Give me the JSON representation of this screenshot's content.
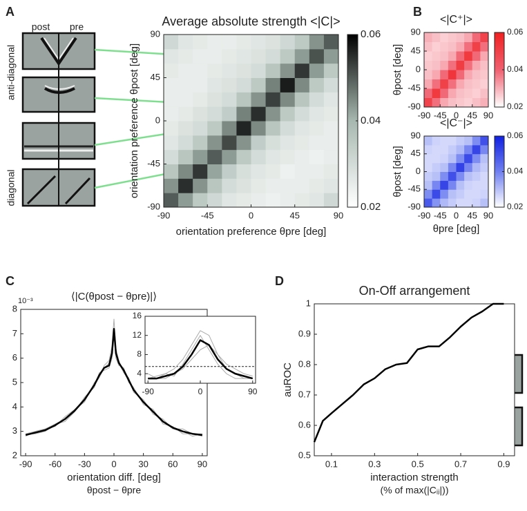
{
  "chart_data": [
    {
      "type": "heatmap",
      "panel": "A",
      "title": "Average absolute strength <|C|>",
      "xlabel": "orientation preference θpre [deg]",
      "ylabel": "orientation preference θpost [deg]",
      "column_labels": [
        "post",
        "pre"
      ],
      "group_labels": [
        "anti-diagonal",
        "diagonal"
      ],
      "x": [
        -82.5,
        -67.5,
        -52.5,
        -37.5,
        -22.5,
        -7.5,
        7.5,
        22.5,
        37.5,
        52.5,
        67.5,
        82.5
      ],
      "y": [
        -82.5,
        -67.5,
        -52.5,
        -37.5,
        -22.5,
        -7.5,
        7.5,
        22.5,
        37.5,
        52.5,
        67.5,
        82.5
      ],
      "z": [
        [
          0.05,
          0.043,
          0.035,
          0.031,
          0.027,
          0.026,
          0.025,
          0.024,
          0.025,
          0.026,
          0.027,
          0.031
        ],
        [
          0.044,
          0.055,
          0.044,
          0.036,
          0.03,
          0.028,
          0.026,
          0.025,
          0.025,
          0.025,
          0.026,
          0.027
        ],
        [
          0.036,
          0.045,
          0.054,
          0.042,
          0.034,
          0.029,
          0.027,
          0.026,
          0.024,
          0.025,
          0.025,
          0.026
        ],
        [
          0.03,
          0.036,
          0.043,
          0.05,
          0.043,
          0.035,
          0.03,
          0.027,
          0.026,
          0.025,
          0.024,
          0.025
        ],
        [
          0.027,
          0.03,
          0.035,
          0.044,
          0.052,
          0.044,
          0.034,
          0.029,
          0.027,
          0.026,
          0.025,
          0.025
        ],
        [
          0.026,
          0.028,
          0.03,
          0.035,
          0.045,
          0.056,
          0.045,
          0.036,
          0.03,
          0.027,
          0.026,
          0.025
        ],
        [
          0.025,
          0.026,
          0.028,
          0.03,
          0.034,
          0.046,
          0.055,
          0.044,
          0.035,
          0.03,
          0.027,
          0.026
        ],
        [
          0.025,
          0.025,
          0.026,
          0.028,
          0.03,
          0.036,
          0.044,
          0.053,
          0.045,
          0.036,
          0.03,
          0.027
        ],
        [
          0.025,
          0.025,
          0.025,
          0.027,
          0.028,
          0.03,
          0.035,
          0.046,
          0.057,
          0.045,
          0.035,
          0.03
        ],
        [
          0.026,
          0.025,
          0.025,
          0.026,
          0.027,
          0.028,
          0.03,
          0.036,
          0.044,
          0.054,
          0.043,
          0.035
        ],
        [
          0.027,
          0.026,
          0.025,
          0.025,
          0.026,
          0.027,
          0.028,
          0.03,
          0.035,
          0.043,
          0.051,
          0.043
        ],
        [
          0.031,
          0.027,
          0.026,
          0.025,
          0.025,
          0.026,
          0.027,
          0.028,
          0.031,
          0.035,
          0.044,
          0.05
        ]
      ],
      "xlim": [
        -90,
        90
      ],
      "ylim": [
        -90,
        90
      ],
      "xticks": [
        -90,
        -45,
        0,
        45,
        90
      ],
      "yticks": [
        -90,
        -45,
        0,
        45,
        90
      ],
      "colormap": [
        "#ffffff",
        "#a7b8b0",
        "#000000"
      ],
      "clim": [
        0.02,
        0.06
      ],
      "cticks": [
        0.02,
        0.04,
        0.06
      ]
    },
    {
      "type": "heatmap",
      "panel": "B",
      "title": "<|C⁺|>",
      "ylabel": "θpost [deg]",
      "x": [
        -78.75,
        -56.25,
        -33.75,
        -11.25,
        11.25,
        33.75,
        56.25,
        78.75
      ],
      "y": [
        -78.75,
        -56.25,
        -33.75,
        -11.25,
        11.25,
        33.75,
        56.25,
        78.75
      ],
      "z": [
        [
          0.049,
          0.038,
          0.031,
          0.028,
          0.027,
          0.026,
          0.028,
          0.03
        ],
        [
          0.039,
          0.052,
          0.039,
          0.031,
          0.028,
          0.027,
          0.026,
          0.028
        ],
        [
          0.031,
          0.038,
          0.05,
          0.038,
          0.031,
          0.028,
          0.027,
          0.026
        ],
        [
          0.028,
          0.031,
          0.039,
          0.053,
          0.039,
          0.031,
          0.028,
          0.027
        ],
        [
          0.027,
          0.028,
          0.031,
          0.038,
          0.051,
          0.038,
          0.031,
          0.028
        ],
        [
          0.026,
          0.027,
          0.028,
          0.031,
          0.039,
          0.052,
          0.039,
          0.031
        ],
        [
          0.028,
          0.026,
          0.027,
          0.028,
          0.031,
          0.038,
          0.05,
          0.038
        ],
        [
          0.03,
          0.028,
          0.026,
          0.027,
          0.028,
          0.031,
          0.039,
          0.049
        ]
      ],
      "xlim": [
        -90,
        90
      ],
      "ylim": [
        -90,
        90
      ],
      "xticks": [
        -90,
        -45,
        0,
        45,
        90
      ],
      "yticks": [
        -90,
        -45,
        0,
        45,
        90
      ],
      "colormap": [
        "#ffffff",
        "#f06070",
        "#f02020"
      ],
      "clim": [
        0.02,
        0.06
      ],
      "cticks": [
        0.02,
        0.04,
        0.06
      ]
    },
    {
      "type": "heatmap",
      "title": "<|C⁻|>",
      "ylabel": "θpost [deg]",
      "xlabel": "θpre [deg]",
      "x": [
        -78.75,
        -56.25,
        -33.75,
        -11.25,
        11.25,
        33.75,
        56.25,
        78.75
      ],
      "y": [
        -78.75,
        -56.25,
        -33.75,
        -11.25,
        11.25,
        33.75,
        56.25,
        78.75
      ],
      "z": [
        [
          0.048,
          0.037,
          0.031,
          0.028,
          0.026,
          0.026,
          0.027,
          0.03
        ],
        [
          0.038,
          0.051,
          0.038,
          0.03,
          0.028,
          0.026,
          0.026,
          0.027
        ],
        [
          0.03,
          0.039,
          0.052,
          0.039,
          0.03,
          0.027,
          0.026,
          0.026
        ],
        [
          0.028,
          0.03,
          0.038,
          0.05,
          0.038,
          0.03,
          0.028,
          0.026
        ],
        [
          0.026,
          0.028,
          0.03,
          0.039,
          0.053,
          0.039,
          0.031,
          0.028
        ],
        [
          0.026,
          0.026,
          0.027,
          0.03,
          0.038,
          0.051,
          0.038,
          0.03
        ],
        [
          0.027,
          0.026,
          0.026,
          0.028,
          0.031,
          0.039,
          0.052,
          0.039
        ],
        [
          0.03,
          0.027,
          0.026,
          0.026,
          0.028,
          0.03,
          0.038,
          0.05
        ]
      ],
      "xlim": [
        -90,
        90
      ],
      "ylim": [
        -90,
        90
      ],
      "xticks": [
        -90,
        -45,
        0,
        45,
        90
      ],
      "yticks": [
        -90,
        -45,
        0,
        45,
        90
      ],
      "colormap": [
        "#ffffff",
        "#7080f0",
        "#1020e0"
      ],
      "clim": [
        0.02,
        0.06
      ],
      "cticks": [
        0.02,
        0.04,
        0.06
      ]
    },
    {
      "type": "line",
      "panel": "C",
      "title": "⟨|C(θpost − θpre)|⟩",
      "y_multiplier": "10⁻³",
      "xlabel": [
        "orientation diff. [deg]",
        "θpost − θpre"
      ],
      "x": [
        -90,
        -80,
        -70,
        -60,
        -50,
        -40,
        -30,
        -20,
        -15,
        -10,
        -5,
        -2,
        0,
        2,
        5,
        10,
        15,
        20,
        30,
        40,
        50,
        60,
        70,
        80,
        90
      ],
      "series": [
        {
          "color": "#aaaaaa",
          "linewidth": 1,
          "values": [
            2.8,
            3.0,
            3.1,
            3.2,
            3.6,
            3.9,
            4.2,
            5.0,
            5.2,
            5.7,
            5.9,
            6.5,
            7.6,
            6.4,
            5.9,
            5.4,
            5.2,
            4.6,
            4.3,
            3.7,
            3.5,
            3.1,
            3.0,
            2.8,
            2.9
          ]
        },
        {
          "color": "#aaaaaa",
          "linewidth": 1,
          "values": [
            2.9,
            2.9,
            3.0,
            3.3,
            3.4,
            3.8,
            4.4,
            4.8,
            5.4,
            5.5,
            5.6,
            6.0,
            7.0,
            6.0,
            5.7,
            5.6,
            5.0,
            4.8,
            4.1,
            3.9,
            3.3,
            3.2,
            2.9,
            2.9,
            2.8
          ]
        },
        {
          "color": "#aaaaaa",
          "linewidth": 1,
          "values": [
            2.9,
            3.0,
            3.1,
            3.3,
            3.5,
            3.9,
            4.3,
            4.9,
            5.2,
            5.6,
            5.8,
            6.3,
            6.9,
            6.3,
            5.8,
            5.4,
            5.1,
            4.7,
            4.2,
            3.8,
            3.4,
            3.1,
            3.1,
            2.9,
            2.9
          ]
        },
        {
          "color": "#000000",
          "linewidth": 2.5,
          "values": [
            2.85,
            2.95,
            3.05,
            3.25,
            3.5,
            3.85,
            4.3,
            4.9,
            5.3,
            5.6,
            5.7,
            6.2,
            7.2,
            6.2,
            5.8,
            5.5,
            5.1,
            4.7,
            4.2,
            3.8,
            3.4,
            3.15,
            3.0,
            2.9,
            2.85
          ]
        }
      ],
      "xlim": [
        -95,
        95
      ],
      "ylim": [
        2,
        8
      ],
      "xticks": [
        -90,
        -60,
        -30,
        0,
        30,
        60,
        90
      ],
      "yticks": [
        2,
        3,
        4,
        5,
        6,
        7,
        8
      ]
    },
    {
      "type": "line",
      "x": [
        -90,
        -75,
        -60,
        -45,
        -30,
        -15,
        0,
        15,
        30,
        45,
        60,
        75,
        90
      ],
      "series": [
        {
          "color": "#aaaaaa",
          "linewidth": 1,
          "values": [
            3,
            3.5,
            4,
            5,
            7,
            10,
            13,
            12,
            8,
            5,
            4,
            3,
            3
          ]
        },
        {
          "color": "#aaaaaa",
          "linewidth": 1,
          "values": [
            4,
            3,
            3,
            4,
            5,
            7,
            9,
            10,
            8,
            6,
            5,
            4,
            3.5
          ]
        },
        {
          "color": "#aaaaaa",
          "linewidth": 1,
          "values": [
            3,
            3,
            4,
            3.5,
            6,
            9,
            12,
            9,
            6,
            4,
            3,
            3,
            3
          ]
        },
        {
          "color": "#000000",
          "linewidth": 2.5,
          "values": [
            3,
            3,
            3.5,
            4,
            5.5,
            8,
            11,
            10,
            7,
            5,
            4,
            3.5,
            3
          ]
        }
      ],
      "hlines": [
        5.5
      ],
      "xlim": [
        -95,
        95
      ],
      "ylim": [
        2,
        16
      ],
      "xticks": [
        -90,
        0,
        90
      ],
      "yticks": [
        4,
        8,
        12,
        16
      ]
    },
    {
      "type": "line",
      "panel": "D",
      "title": "On-Off arrangement",
      "ylabel": "auROC",
      "xlabel": [
        "interaction strength",
        "(% of max(|Cᵢⱼ|))"
      ],
      "x": [
        0.02,
        0.06,
        0.1,
        0.15,
        0.2,
        0.25,
        0.3,
        0.35,
        0.4,
        0.45,
        0.5,
        0.55,
        0.6,
        0.65,
        0.7,
        0.75,
        0.8,
        0.85,
        0.9
      ],
      "series": [
        {
          "color": "#000000",
          "linewidth": 2.5,
          "values": [
            0.545,
            0.615,
            0.64,
            0.67,
            0.7,
            0.735,
            0.755,
            0.785,
            0.8,
            0.805,
            0.85,
            0.86,
            0.86,
            0.89,
            0.925,
            0.955,
            0.975,
            1.0,
            1.0
          ]
        }
      ],
      "xlim": [
        0.02,
        0.95
      ],
      "ylim": [
        0.5,
        1
      ],
      "xticks": [
        0.1,
        0.3,
        0.5,
        0.7,
        0.9
      ],
      "yticks": [
        0.5,
        0.6,
        0.7,
        0.8,
        0.9,
        1
      ]
    }
  ]
}
